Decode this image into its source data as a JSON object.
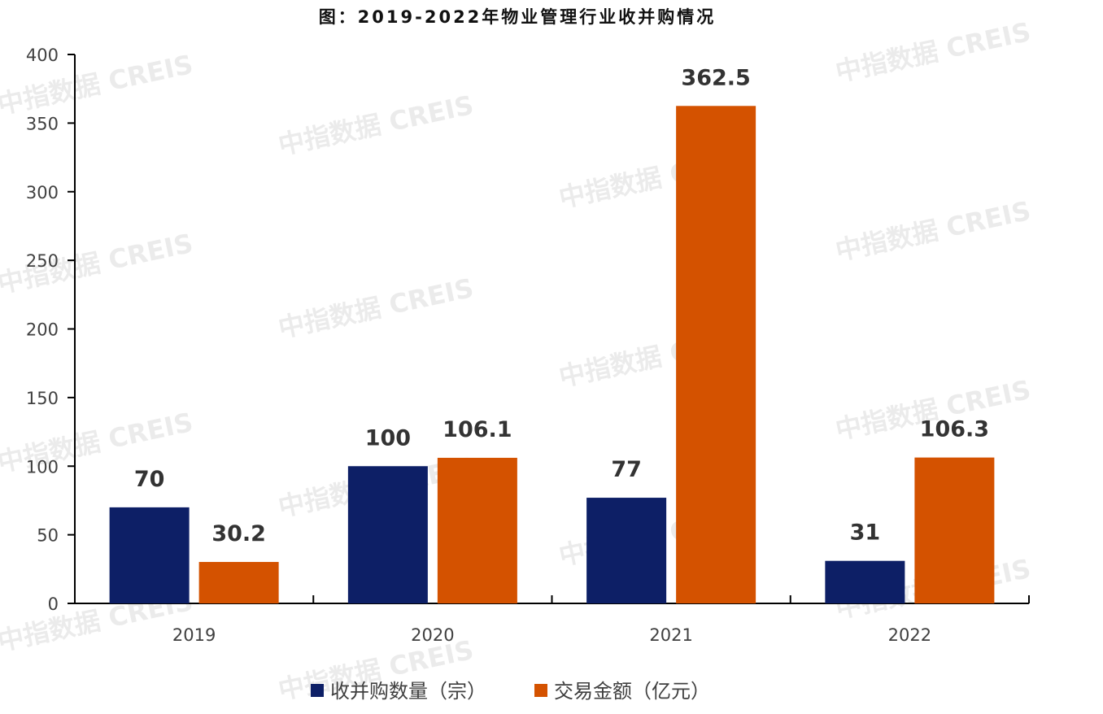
{
  "chart_data": {
    "type": "bar",
    "title": "图：2019-2022年物业管理行业收并购情况",
    "categories": [
      "2019",
      "2020",
      "2021",
      "2022"
    ],
    "series": [
      {
        "name": "收并购数量（宗）",
        "values": [
          70,
          100,
          77,
          31
        ],
        "color": "#0d1f66"
      },
      {
        "name": "交易金额（亿元）",
        "values": [
          30.2,
          106.1,
          362.5,
          106.3
        ],
        "color": "#d45200"
      }
    ],
    "data_labels": [
      [
        "70",
        "100",
        "77",
        "31"
      ],
      [
        "30.2",
        "106.1",
        "362.5",
        "106.3"
      ]
    ],
    "y_ticks": [
      "0",
      "50",
      "100",
      "150",
      "200",
      "250",
      "300",
      "350",
      "400"
    ],
    "ylim": [
      0,
      400
    ],
    "grid": false,
    "legend_position": "bottom",
    "watermark": "中指数据 CREIS"
  }
}
